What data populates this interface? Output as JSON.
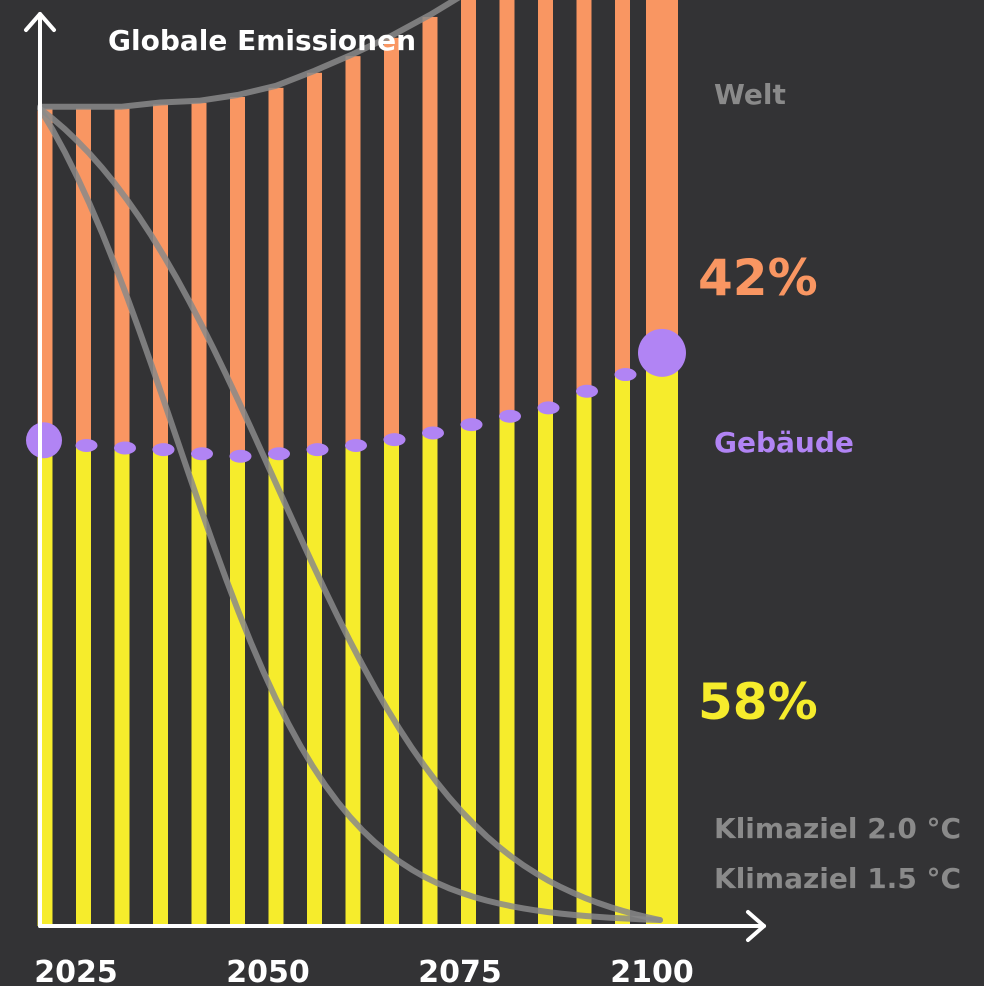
{
  "chart_data": {
    "type": "bar",
    "title": "Globale Emissionen",
    "x": [
      2020,
      2025,
      2030,
      2035,
      2040,
      2045,
      2050,
      2055,
      2060,
      2065,
      2070,
      2075,
      2080,
      2085,
      2090,
      2095,
      2100
    ],
    "x_tick_labels": [
      "2025",
      "2050",
      "2075",
      "2100"
    ],
    "series": [
      {
        "name": "Gebäude",
        "color": "#F6EC2C",
        "values": [
          0.58,
          0.575,
          0.572,
          0.57,
          0.565,
          0.562,
          0.565,
          0.57,
          0.575,
          0.582,
          0.59,
          0.6,
          0.61,
          0.62,
          0.64,
          0.66,
          0.68
        ]
      },
      {
        "name": "Welt (Rest)",
        "color": "#F99662",
        "values": [
          0.4,
          0.405,
          0.408,
          0.415,
          0.422,
          0.432,
          0.44,
          0.453,
          0.468,
          0.483,
          0.5,
          0.518,
          0.54,
          0.565,
          0.6,
          0.64,
          0.5
        ]
      }
    ],
    "curves": [
      {
        "name": "Welt",
        "color": "#8A8A8A"
      },
      {
        "name": "Klimaziel 2.0 °C",
        "color": "#8A8A8A"
      },
      {
        "name": "Klimaziel 1.5 °C",
        "color": "#8A8A8A"
      }
    ],
    "annotations": {
      "share_other": "42%",
      "share_buildings": "58%",
      "label_world": "Welt",
      "label_buildings": "Gebäude",
      "label_2c": "Klimaziel 2.0 °C",
      "label_15c": "Klimaziel 1.5 °C"
    },
    "colors": {
      "buildings": "#F6EC2C",
      "other": "#F99662",
      "marker": "#B184F4",
      "curve": "#8A8A8A",
      "axis": "#FFFFFF"
    }
  }
}
